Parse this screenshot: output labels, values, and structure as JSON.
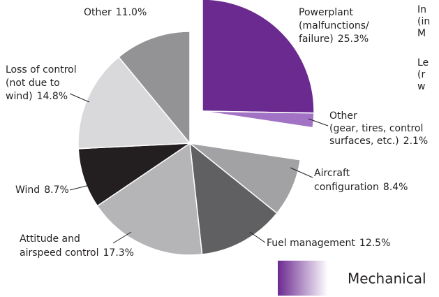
{
  "chart_data": {
    "type": "pie",
    "categories": [
      [
        "Powerplant",
        "(malfunctions/",
        "failure)"
      ],
      [
        "Other",
        "(gear, tires, control",
        "surfaces, etc.)"
      ],
      [
        "Aircraft",
        "configuration"
      ],
      [
        "Fuel management"
      ],
      [
        "Attitude and",
        "airspeed control"
      ],
      [
        "Wind"
      ],
      [
        "Loss of control",
        "(not due to",
        "wind)"
      ],
      [
        "Other"
      ]
    ],
    "values": [
      25.3,
      2.1,
      8.4,
      12.5,
      17.3,
      8.7,
      14.8,
      11.0
    ],
    "value_labels": [
      "25.3%",
      "2.1%",
      "8.4%",
      "12.5%",
      "17.3%",
      "8.7%",
      "14.8%",
      "11.0%"
    ],
    "colors": [
      "#6b2a90",
      "#a272c4",
      "#a2a2a4",
      "#606062",
      "#b5b5b7",
      "#231f20",
      "#d9d9db",
      "#939395"
    ],
    "exploded": [
      true,
      true,
      false,
      false,
      false,
      false,
      false,
      false
    ],
    "legend": {
      "name": "Mechanical",
      "color": "#6b2a90"
    },
    "annotations": [
      "In",
      "(in",
      "M",
      "Le",
      "(r",
      "w"
    ]
  }
}
